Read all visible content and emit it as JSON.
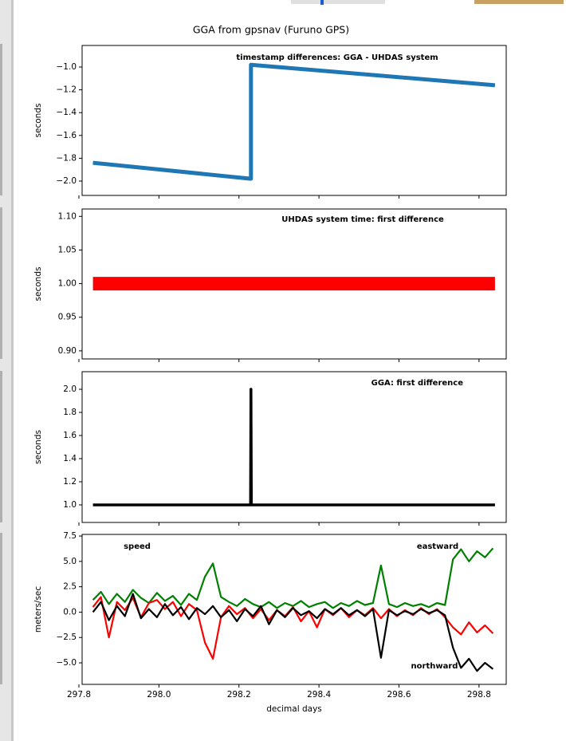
{
  "title": "GGA from gpsnav (Furuno GPS)",
  "chart_data": [
    {
      "type": "line",
      "annotation": {
        "text": "timestamp differences: GGA - UHDAS system",
        "color": "#000000"
      },
      "y_label": "seconds",
      "series": [
        {
          "color": "#1f77b4",
          "x": [
            297.835,
            298.23,
            298.23,
            298.84
          ],
          "values": [
            -1.84,
            -1.98,
            -0.98,
            -1.16
          ]
        }
      ],
      "xlim": [
        297.808,
        298.868
      ],
      "xticks": [
        297.8,
        298.0,
        298.2,
        298.4,
        298.6,
        298.8
      ],
      "ylim": [
        -2.126,
        -0.811
      ],
      "yticks": [
        {
          "value": -1.0,
          "label": "−1.0"
        },
        {
          "value": -1.2,
          "label": "−1.2"
        },
        {
          "value": -1.4,
          "label": "−1.4"
        },
        {
          "value": -1.6,
          "label": "−1.6"
        },
        {
          "value": -1.8,
          "label": "−1.8"
        },
        {
          "value": -2.0,
          "label": "−2.0"
        }
      ]
    },
    {
      "type": "line",
      "annotation": {
        "text": "UHDAS system time: first difference",
        "color": "#e8202a"
      },
      "y_label": "seconds",
      "series": [
        {
          "color": "#ff0000",
          "x": [
            297.835,
            298.84
          ],
          "values": [
            1.0,
            1.0
          ]
        }
      ],
      "xlim": [
        297.808,
        298.868
      ],
      "xticks": [
        297.8,
        298.0,
        298.2,
        298.4,
        298.6,
        298.8
      ],
      "ylim": [
        0.888,
        1.111
      ],
      "yticks": [
        {
          "value": 1.1,
          "label": "1.10"
        },
        {
          "value": 1.05,
          "label": "1.05"
        },
        {
          "value": 1.0,
          "label": "1.00"
        },
        {
          "value": 0.95,
          "label": "0.95"
        },
        {
          "value": 0.9,
          "label": "0.90"
        }
      ]
    },
    {
      "type": "line",
      "annotation": {
        "text": "GGA: first difference",
        "color": "#000000"
      },
      "y_label": "seconds",
      "series": [
        {
          "color": "#000000",
          "x": [
            297.835,
            298.229,
            298.23,
            298.231,
            298.84
          ],
          "values": [
            1,
            1,
            2,
            1,
            1
          ]
        }
      ],
      "xlim": [
        297.808,
        298.868
      ],
      "xticks": [
        297.8,
        298.0,
        298.2,
        298.4,
        298.6,
        298.8
      ],
      "ylim": [
        0.848,
        2.152
      ],
      "yticks": [
        {
          "value": 2.0,
          "label": "2.0"
        },
        {
          "value": 1.8,
          "label": "1.8"
        },
        {
          "value": 1.6,
          "label": "1.6"
        },
        {
          "value": 1.4,
          "label": "1.4"
        },
        {
          "value": 1.2,
          "label": "1.2"
        },
        {
          "value": 1.0,
          "label": "1.0"
        }
      ]
    },
    {
      "type": "line",
      "y_label": "meters/sec",
      "x_label": "decimal days",
      "x": [
        297.835,
        297.855,
        297.875,
        297.895,
        297.915,
        297.935,
        297.955,
        297.975,
        297.995,
        298.015,
        298.035,
        298.055,
        298.075,
        298.095,
        298.115,
        298.135,
        298.155,
        298.175,
        298.195,
        298.215,
        298.235,
        298.255,
        298.275,
        298.295,
        298.315,
        298.335,
        298.355,
        298.375,
        298.395,
        298.415,
        298.435,
        298.455,
        298.475,
        298.495,
        298.515,
        298.535,
        298.555,
        298.575,
        298.595,
        298.615,
        298.635,
        298.655,
        298.675,
        298.695,
        298.715,
        298.735,
        298.755,
        298.775,
        298.795,
        298.815,
        298.835
      ],
      "series": [
        {
          "name": "speed",
          "color": "#008000",
          "values": [
            1.2,
            2.0,
            0.8,
            1.8,
            1.0,
            2.2,
            1.4,
            0.9,
            1.9,
            1.1,
            1.6,
            0.7,
            1.8,
            1.2,
            3.5,
            4.8,
            1.5,
            1.0,
            0.6,
            1.3,
            0.8,
            0.5,
            1.0,
            0.4,
            0.9,
            0.6,
            1.1,
            0.5,
            0.8,
            1.0,
            0.4,
            0.9,
            0.6,
            1.1,
            0.7,
            0.9,
            4.6,
            0.8,
            0.5,
            0.9,
            0.6,
            0.8,
            0.5,
            0.9,
            0.7,
            5.2,
            6.2,
            5.0,
            6.0,
            5.4,
            6.3
          ]
        },
        {
          "name": "eastward",
          "color": "#ff0000",
          "values": [
            0.5,
            1.5,
            -2.5,
            1.0,
            0.2,
            1.4,
            -0.5,
            0.9,
            1.2,
            0.3,
            1.0,
            -0.4,
            0.8,
            0.2,
            -3.0,
            -4.6,
            -0.5,
            0.6,
            -0.2,
            0.4,
            -0.6,
            0.3,
            -0.8,
            0.2,
            -0.4,
            0.5,
            -0.9,
            0.1,
            -1.5,
            0.3,
            -0.3,
            0.4,
            -0.5,
            0.2,
            -0.3,
            0.4,
            -0.6,
            0.3,
            -0.4,
            0.2,
            -0.3,
            0.4,
            -0.2,
            0.3,
            -0.5,
            -1.5,
            -2.2,
            -1.0,
            -2.0,
            -1.3,
            -2.1
          ]
        },
        {
          "name": "northward",
          "color": "#000000",
          "values": [
            0.0,
            1.0,
            -0.8,
            0.6,
            -0.4,
            1.8,
            -0.6,
            0.3,
            -0.5,
            0.8,
            -0.3,
            0.5,
            -0.7,
            0.4,
            -0.2,
            0.6,
            -0.5,
            0.2,
            -0.9,
            0.3,
            -0.4,
            0.6,
            -1.2,
            0.2,
            -0.5,
            0.4,
            -0.3,
            0.1,
            -0.6,
            0.3,
            -0.2,
            0.4,
            -0.3,
            0.2,
            -0.4,
            0.3,
            -4.5,
            0.2,
            -0.3,
            0.1,
            -0.2,
            0.3,
            -0.1,
            0.2,
            -0.3,
            -3.5,
            -5.5,
            -4.6,
            -5.8,
            -5.0,
            -5.6
          ]
        }
      ],
      "xlim": [
        297.808,
        298.868
      ],
      "xticks": [
        297.8,
        {
          "value": 298.0,
          "label": "298.0"
        },
        298.2,
        298.4,
        298.6,
        298.8
      ],
      "ylim": [
        -7.12,
        7.66
      ],
      "yticks": [
        7.5,
        {
          "value": 5.0,
          "label": "5.0"
        },
        2.5,
        {
          "value": 0.0,
          "label": "0.0"
        },
        {
          "value": -2.5,
          "label": "−2.5"
        },
        {
          "value": -5.0,
          "label": "−5.0"
        }
      ]
    }
  ]
}
